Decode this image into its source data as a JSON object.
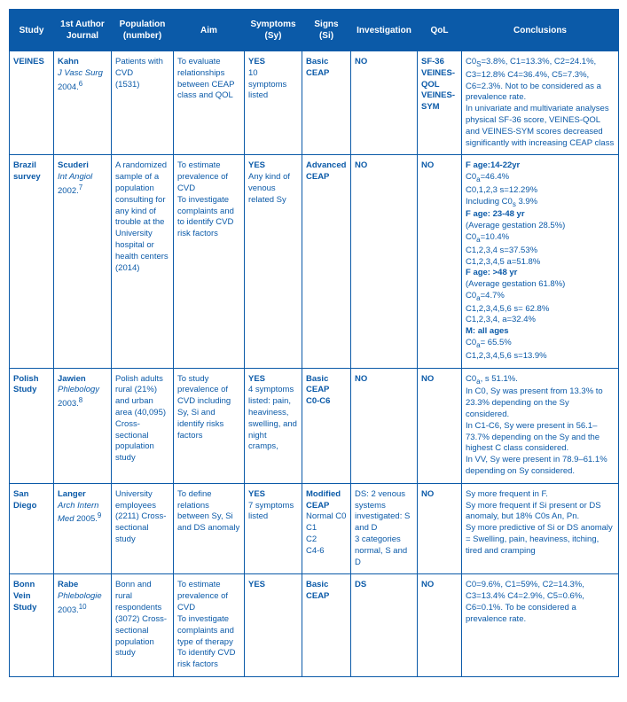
{
  "table": {
    "background_header": "#0b5aa8",
    "text_color": "#0b5aa8",
    "header_text_color": "#ffffff",
    "columns": [
      "Study",
      "1st Author\nJournal",
      "Population\n(number)",
      "Aim",
      "Symptoms\n(Sy)",
      "Signs\n(Si)",
      "Investigation",
      "QoL",
      "Conclusions"
    ],
    "rows": [
      {
        "study": "VEINES",
        "author_html": "<b>Kahn</b><br><span class='italic'>J Vasc Surg</span><br>2004.<sup>6</sup>",
        "population": "Patients with CVD<br>(1531)",
        "aim": "To evaluate relationships between  CEAP class and QOL",
        "symptoms": "<b>YES</b><br>10 symptoms listed",
        "signs": "<b>Basic CEAP</b>",
        "investigation": "<b>NO</b>",
        "qol": "<b>SF-36<br>VEINES-QOL<br>VEINES-SYM</b>",
        "conclusions": "C0<span class='sub'>S</span>=3.8%, C1=13.3%, C2=24.1%, C3=12.8% C4=36.4%, C5=7.3%, C6=2.3%. Not to be considered as a prevalence rate.<br>In univariate and multivariate  analyses physical SF-36 score, VEINES-QOL and VEINES-SYM scores decreased significantly with increasing CEAP class"
      },
      {
        "study": "Brazil survey",
        "author_html": "<b>Scuderi</b><br><span class='italic'>Int Angiol</span><br>2002.<sup>7</sup>",
        "population": "A randomized sample of a population consulting for any kind of trouble at the University hospital or health centers (2014)",
        "aim": "To estimate prevalence of CVD<br>To investigate complaints and to identify CVD risk factors",
        "symptoms": "<b>YES</b><br>Any kind of venous related Sy",
        "signs": "<b>Advanced CEAP</b>",
        "investigation": "<b>NO</b>",
        "qol": "<b>NO</b>",
        "conclusions": "<b>F age:14-22yr</b><br>C0<span class='sub'>a</span>=46.4%<br>C0,1,2,3 s=12.29%<br>Including C0<span class='sub'>s</span> 3.9%<br><b>F age: 23-48 yr</b><br>(Average gestation 28.5%)<br>C0<span class='sub'>a</span>=10.4%<br>C1,2,3,4 s=37.53%<br>C1,2,3,4,5 a=51.8%<br><b>F age: &gt;48 yr</b><br>(Average gestation 61.8%)<br>C0<span class='sub'>a</span>=4.7%<br>C1,2,3,4,5,6 s= 62.8%<br>C1,2,3,4, a=32.4%<br><b>M: all ages</b><br>C0<span class='sub'>a</span>= 65.5%<br>C1,2,3,4,5,6 s=13.9%"
      },
      {
        "study": "Polish Study",
        "author_html": "<b>Jawien</b><br><span class='italic'>Phlebology</span><br>2003.<sup>8</sup>",
        "population": "Polish adults rural (21%) and urban area (40,095) Cross-sectional population study",
        "aim": "To study prevalence of  CVD including Sy, Si and identify risks factors",
        "symptoms": "<b>YES</b><br>4 symptoms listed: pain, heaviness, swelling, and night cramps,",
        "signs": "<b>Basic CEAP<br>C0-C6</b>",
        "investigation": "<b>NO</b>",
        "qol": "<b>NO</b>",
        "conclusions": "C0<span class='sub'>a</span>, s 51.1%.<br>In C0, Sy was present from 13.3% to 23.3% depending on the Sy considered.<br>In C1-C6, Sy were present in 56.1–73.7% depending on the Sy and the highest C class considered.<br>In VV, Sy were present in 78.9–61.1% depending on Sy considered."
      },
      {
        "study": "San Diego",
        "author_html": "<b>Langer</b><br><span class='italic'>Arch Intern Med</span> 2005.<sup>9</sup>",
        "population": "University employees (2211) Cross-sectional study",
        "aim": "To define relations between Sy, Si and DS anomaly",
        "symptoms": "<b>YES</b><br>7 symptoms listed",
        "signs": "<b>Modified CEAP</b><br>Normal C0<br>C1<br>C2<br>C4-6",
        "investigation": "DS: 2 venous systems investigated: S and D<br>3 categories normal, S and D",
        "qol": "<b>NO</b>",
        "conclusions": "Sy more frequent in F.<br>Sy more frequent if Si present or DS anomaly, but 18%  C0s An, Pn.<br>Sy more predictive of Si or DS anomaly = Swelling, pain, heaviness, itching, tired and cramping"
      },
      {
        "study": "Bonn Vein Study",
        "author_html": "<b>Rabe</b><br><span class='italic'>Phlebologie</span><br>2003.<sup>10</sup>",
        "population": "Bonn and rural respondents (3072) Cross-sectional population study",
        "aim": "To estimate prevalence of CVD<br>To investigate complaints and type of therapy<br>To identify CVD risk factors",
        "symptoms": "<b>YES</b>",
        "signs": "<b>Basic CEAP</b>",
        "investigation": "<b>DS</b>",
        "qol": "<b>NO</b>",
        "conclusions": "C0=9.6%, C1=59%, C2=14.3%, C3=13.4% C4=2.9%, C5=0.6%, C6=0.1%. To be considered a prevalence rate."
      }
    ]
  }
}
